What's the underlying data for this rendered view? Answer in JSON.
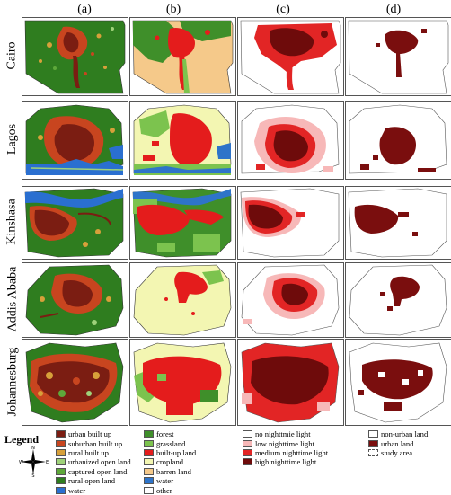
{
  "columns": [
    "(a)",
    "(b)",
    "(c)",
    "(d)"
  ],
  "cities": [
    "Cairo",
    "Lagos",
    "Kinshasa",
    "Addis Ababa",
    "Johannesburg"
  ],
  "legend": {
    "title": "Legend",
    "a": [
      {
        "label": "urban built up",
        "color": "#7b1d12"
      },
      {
        "label": "suburban built up",
        "color": "#c8451f"
      },
      {
        "label": "rural built up",
        "color": "#d7a03a"
      },
      {
        "label": "urbanized open land",
        "color": "#9fd27a"
      },
      {
        "label": "captured open land",
        "color": "#5ea83a"
      },
      {
        "label": "rural open land",
        "color": "#2f7d1f"
      },
      {
        "label": "water",
        "color": "#2a6fd0"
      }
    ],
    "b": [
      {
        "label": "forest",
        "color": "#3f8f2a"
      },
      {
        "label": "grassland",
        "color": "#7cc34e"
      },
      {
        "label": "built-up land",
        "color": "#e41c1c"
      },
      {
        "label": "cropland",
        "color": "#f3f6b2"
      },
      {
        "label": "barren land",
        "color": "#f5c98a"
      },
      {
        "label": "water",
        "color": "#2e74c9"
      },
      {
        "label": "other",
        "color": "#ffffff"
      }
    ],
    "c": [
      {
        "label": "no nighttmie light",
        "color": "#ffffff"
      },
      {
        "label": "low nighttime light",
        "color": "#f7b8b8"
      },
      {
        "label": "medium nighttime light",
        "color": "#e22525"
      },
      {
        "label": "high nighttime light",
        "color": "#6e0b0b"
      }
    ],
    "d": [
      {
        "label": "non-urban land",
        "color": "#ffffff"
      },
      {
        "label": "urban land",
        "color": "#7a0e0e"
      },
      {
        "label": "study area",
        "color": "#ffffff"
      }
    ]
  }
}
